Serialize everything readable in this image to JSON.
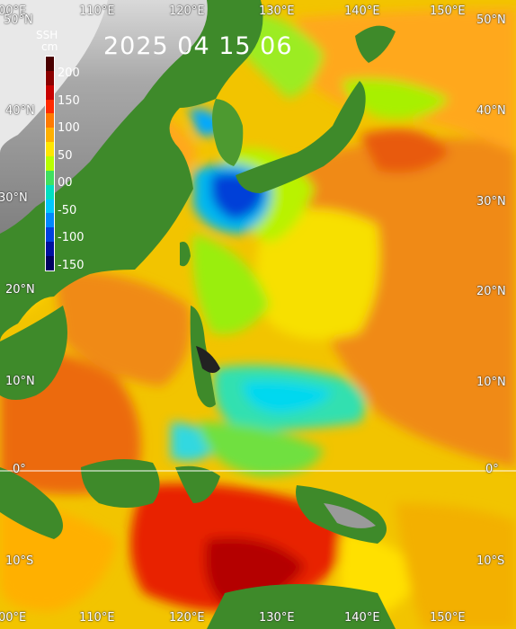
{
  "title": "2025 04 15 06",
  "legend": {
    "title_line1": "SSH",
    "title_line2": "cm",
    "ticks": [
      "200",
      "150",
      "100",
      "50",
      "00",
      "-50",
      "-100",
      "-150"
    ],
    "colors": [
      "#4a0000",
      "#8b0000",
      "#c80000",
      "#ff2a00",
      "#ff7a00",
      "#ffb000",
      "#ffe600",
      "#b8ff00",
      "#40e060",
      "#00e0c0",
      "#00c8ff",
      "#0088ff",
      "#0040e0",
      "#0010a0",
      "#000060"
    ]
  },
  "longitude_labels_top": [
    "00°E",
    "110°E",
    "120°E",
    "130°E",
    "140°E",
    "150°E"
  ],
  "longitude_labels_bottom": [
    "00°E",
    "110°E",
    "120°E",
    "130°E",
    "140°E",
    "150°E"
  ],
  "latitude_labels_left": [
    "50°N",
    "40°N",
    "30°N",
    "20°N",
    "10°N",
    "0°",
    "10°S"
  ],
  "latitude_labels_right": [
    "50°N",
    "40°N",
    "30°N",
    "20°N",
    "10°N",
    "0°",
    "10°S"
  ]
}
